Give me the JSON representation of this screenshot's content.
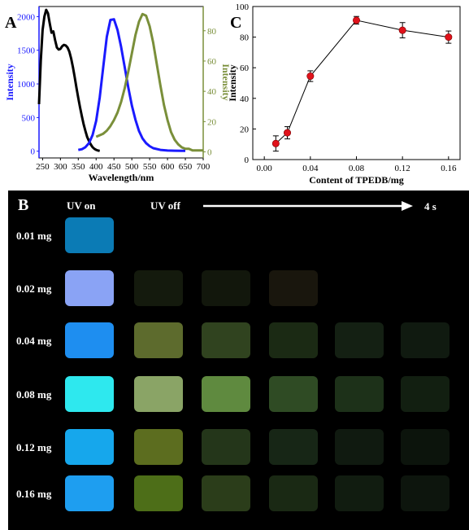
{
  "panels": {
    "a": {
      "letter": "A"
    },
    "b": {
      "letter": "B"
    },
    "c": {
      "letter": "C"
    }
  },
  "chart_data": [
    {
      "panel": "A",
      "type": "line",
      "xlabel": "Wavelength/nm",
      "ylabel_left": "Intensity",
      "ylabel_right": "Intensity",
      "xlim": [
        240,
        700
      ],
      "ylim_left": [
        -100,
        2150
      ],
      "ylim_right": [
        -4,
        96
      ],
      "xticks": [
        250,
        300,
        350,
        400,
        450,
        500,
        550,
        600,
        650,
        700
      ],
      "yticks_left": [
        0,
        500,
        1000,
        1500,
        2000
      ],
      "yticks_right": [
        0,
        20,
        40,
        60,
        80
      ],
      "colors": {
        "left_axis": "#1a1aff",
        "right_axis": "#7a8f3a"
      },
      "series": [
        {
          "axis": "left",
          "color": "#000000",
          "x": [
            240,
            245,
            250,
            255,
            260,
            265,
            270,
            275,
            280,
            285,
            290,
            295,
            300,
            305,
            310,
            315,
            320,
            325,
            330,
            335,
            340,
            345,
            350,
            355,
            360,
            365,
            370,
            375,
            380,
            385,
            390,
            395,
            400,
            405,
            410
          ],
          "y": [
            700,
            1350,
            1800,
            2000,
            2100,
            2050,
            1900,
            1760,
            1780,
            1650,
            1540,
            1510,
            1520,
            1560,
            1580,
            1570,
            1540,
            1480,
            1380,
            1250,
            1100,
            940,
            790,
            650,
            520,
            400,
            300,
            210,
            150,
            100,
            60,
            35,
            20,
            10,
            5
          ]
        },
        {
          "axis": "left",
          "color": "#1a1aff",
          "x": [
            350,
            360,
            370,
            380,
            390,
            400,
            410,
            420,
            430,
            440,
            450,
            460,
            470,
            480,
            490,
            500,
            510,
            520,
            530,
            540,
            550,
            560,
            580,
            600,
            620,
            640,
            650
          ],
          "y": [
            20,
            30,
            60,
            120,
            240,
            450,
            800,
            1250,
            1700,
            1950,
            1960,
            1800,
            1550,
            1250,
            950,
            680,
            470,
            300,
            190,
            120,
            75,
            45,
            20,
            10,
            8,
            5,
            5
          ]
        },
        {
          "axis": "right",
          "color": "#7a8f3a",
          "x": [
            400,
            410,
            420,
            430,
            440,
            450,
            460,
            470,
            480,
            490,
            500,
            510,
            520,
            530,
            540,
            550,
            560,
            570,
            580,
            590,
            600,
            610,
            620,
            630,
            640,
            650,
            660,
            670,
            680,
            690,
            700
          ],
          "y": [
            10,
            11,
            12,
            14,
            17,
            21,
            26,
            33,
            42,
            53,
            65,
            77,
            86,
            91,
            90,
            83,
            72,
            58,
            44,
            31,
            21,
            13,
            8,
            5,
            3,
            2,
            2,
            1,
            1,
            1,
            1
          ]
        }
      ]
    },
    {
      "panel": "C",
      "type": "scatter",
      "xlabel": "Content of TPEDB/mg",
      "ylabel": "Intensity",
      "xlim": [
        -0.01,
        0.17
      ],
      "ylim": [
        0,
        100
      ],
      "xticks": [
        "0.00",
        "0.04",
        "0.08",
        "0.12",
        "0.16"
      ],
      "yticks": [
        0,
        20,
        40,
        60,
        80,
        100
      ],
      "marker_color": "#e0121b",
      "x": [
        0.01,
        0.02,
        0.04,
        0.08,
        0.12,
        0.16
      ],
      "y": [
        10.5,
        17.5,
        54.5,
        91,
        84.5,
        80
      ],
      "err": [
        5,
        4,
        3.5,
        2.5,
        5,
        4
      ]
    }
  ],
  "photo_panel": {
    "header_on": "UV on",
    "header_off": "UV off",
    "header_time": "4 s",
    "rows": [
      {
        "label": "0.01 mg",
        "on": "#0b7bb5",
        "off": [
          "#000000",
          "#000000",
          "#000000",
          "#000000",
          "#000000"
        ]
      },
      {
        "label": "0.02 mg",
        "on": "#8aa3f5",
        "off": [
          "#141a0d",
          "#12170c",
          "#19160d",
          "#000000",
          "#000000"
        ]
      },
      {
        "label": "0.04 mg",
        "on": "#1e8ef0",
        "off": [
          "#5d6b2d",
          "#30431f",
          "#1b2a14",
          "#142013",
          "#101a10"
        ]
      },
      {
        "label": "0.08 mg",
        "on": "#2ee8ee",
        "off": [
          "#8aa466",
          "#5f8a3f",
          "#2f4b24",
          "#1d3119",
          "#121f11"
        ]
      },
      {
        "label": "0.12 mg",
        "on": "#16a7ec",
        "off": [
          "#5c6d1f",
          "#24361a",
          "#172616",
          "#101a10",
          "#0c140c"
        ]
      },
      {
        "label": "0.16 mg",
        "on": "#1e9ef0",
        "off": [
          "#4d6e18",
          "#2b3d1a",
          "#1a2914",
          "#111c10",
          "#0d150d"
        ]
      }
    ]
  }
}
